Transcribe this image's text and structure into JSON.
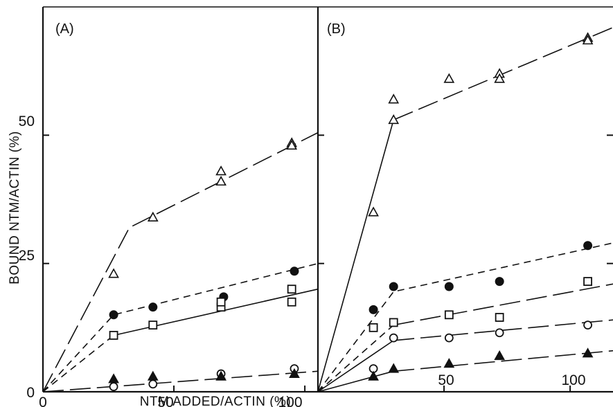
{
  "chart_data": [
    {
      "panel_label": "(A)",
      "type": "scatter",
      "xlabel": "NTM ADDED/ACTIN (%)",
      "ylabel": "BOUND NTM/ACTIN (%)",
      "xlim": [
        0,
        105
      ],
      "ylim": [
        0,
        75
      ],
      "xticks": [
        0,
        50,
        100
      ],
      "yticks": [
        0,
        25,
        50
      ],
      "series": [
        {
          "marker": "triangle-open",
          "points": [
            [
              27,
              23
            ],
            [
              42,
              34
            ],
            [
              68,
              43
            ],
            [
              68,
              41
            ],
            [
              95,
              48.5
            ],
            [
              95,
              48
            ]
          ],
          "fit": {
            "style": "long-dash",
            "path": [
              [
                0,
                0
              ],
              [
                33,
                32
              ],
              [
                105,
                50.5
              ]
            ]
          }
        },
        {
          "marker": "circle-filled",
          "points": [
            [
              27,
              15
            ],
            [
              42,
              16.5
            ],
            [
              69,
              18.5
            ],
            [
              96,
              23.5
            ]
          ],
          "fit": {
            "style": "short-dash",
            "path": [
              [
                0,
                0
              ],
              [
                27,
                15
              ],
              [
                105,
                25
              ]
            ]
          }
        },
        {
          "marker": "square-open",
          "points": [
            [
              27,
              11
            ],
            [
              42,
              13
            ],
            [
              68,
              16.5
            ],
            [
              68,
              17.5
            ],
            [
              95,
              20
            ],
            [
              95,
              17.5
            ]
          ],
          "fit": [
            {
              "style": "short-dash",
              "path": [
                [
                  0,
                  0
                ],
                [
                  27,
                  11
                ]
              ]
            },
            {
              "style": "solid",
              "path": [
                [
                  27,
                  11
                ],
                [
                  105,
                  20
                ]
              ]
            }
          ]
        },
        {
          "marker": "circle-open",
          "points": [
            [
              27,
              1
            ],
            [
              42,
              1.5
            ],
            [
              68,
              3.5
            ],
            [
              96,
              4.5
            ]
          ],
          "fit": {
            "style": "long-dash",
            "path": [
              [
                0,
                0
              ],
              [
                105,
                4
              ]
            ]
          }
        },
        {
          "marker": "triangle-filled",
          "points": [
            [
              27,
              2.5
            ],
            [
              42,
              3
            ],
            [
              68,
              3
            ],
            [
              96,
              3.5
            ]
          ]
        }
      ]
    },
    {
      "panel_label": "(B)",
      "type": "scatter",
      "xlabel": "NTM ADDED/ACTIN (%)",
      "ylabel": "",
      "xlim": [
        0,
        117
      ],
      "ylim": [
        0,
        75
      ],
      "xticks": [
        0,
        50,
        100
      ],
      "yticks": [
        0,
        25,
        50
      ],
      "series": [
        {
          "marker": "triangle-open",
          "points": [
            [
              22,
              35
            ],
            [
              30,
              57
            ],
            [
              30,
              53
            ],
            [
              52,
              61
            ],
            [
              72,
              62
            ],
            [
              72,
              61
            ],
            [
              107,
              69
            ],
            [
              107,
              68.5
            ]
          ],
          "fit": [
            {
              "style": "solid",
              "path": [
                [
                  0,
                  0
                ],
                [
                  30,
                  53
                ]
              ]
            },
            {
              "style": "long-dash",
              "path": [
                [
                  30,
                  53
                ],
                [
                  117,
                  71
                ]
              ]
            }
          ]
        },
        {
          "marker": "circle-filled",
          "points": [
            [
              22,
              16
            ],
            [
              30,
              20.5
            ],
            [
              52,
              20.5
            ],
            [
              72,
              21.5
            ],
            [
              107,
              28.5
            ]
          ],
          "fit": {
            "style": "short-dash",
            "path": [
              [
                0,
                0
              ],
              [
                30,
                19.5
              ],
              [
                117,
                29
              ]
            ]
          }
        },
        {
          "marker": "square-open",
          "points": [
            [
              22,
              12.5
            ],
            [
              30,
              13.5
            ],
            [
              52,
              15
            ],
            [
              72,
              14.5
            ],
            [
              107,
              21.5
            ]
          ],
          "fit": [
            {
              "style": "short-dash",
              "path": [
                [
                  0,
                  0
                ],
                [
                  30,
                  13
                ]
              ]
            },
            {
              "style": "long-dash",
              "path": [
                [
                  30,
                  13
                ],
                [
                  117,
                  21
                ]
              ]
            }
          ]
        },
        {
          "marker": "circle-open",
          "points": [
            [
              22,
              4.5
            ],
            [
              30,
              10.5
            ],
            [
              52,
              10.5
            ],
            [
              72,
              11.5
            ],
            [
              107,
              13
            ]
          ],
          "fit": [
            {
              "style": "solid",
              "path": [
                [
                  0,
                  0
                ],
                [
                  30,
                  10
                ]
              ]
            },
            {
              "style": "long-dash",
              "path": [
                [
                  30,
                  10
                ],
                [
                  117,
                  14
                ]
              ]
            }
          ]
        },
        {
          "marker": "triangle-filled",
          "points": [
            [
              22,
              3
            ],
            [
              30,
              4.5
            ],
            [
              52,
              5.5
            ],
            [
              72,
              7
            ],
            [
              107,
              7.5
            ]
          ],
          "fit": [
            {
              "style": "solid",
              "path": [
                [
                  0,
                  0
                ],
                [
                  30,
                  4
                ]
              ]
            },
            {
              "style": "long-dash",
              "path": [
                [
                  30,
                  4
                ],
                [
                  117,
                  8
                ]
              ]
            }
          ]
        }
      ]
    }
  ]
}
